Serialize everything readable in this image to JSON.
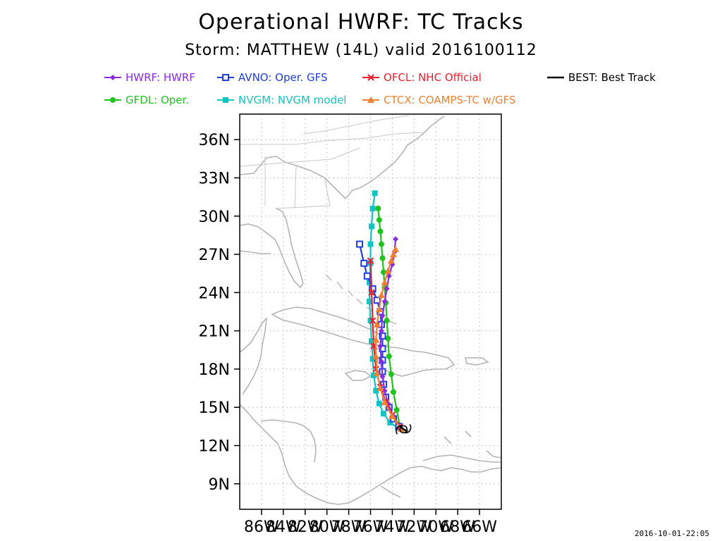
{
  "title": "Operational HWRF: TC Tracks",
  "subtitle": "Storm: MATTHEW (14L) valid 2016100112",
  "timestamp": "2016-10-01-22:05",
  "chart_data": {
    "type": "line",
    "xlim": [
      -88,
      -64
    ],
    "ylim": [
      7,
      38
    ],
    "x_ticks": [
      -86,
      -84,
      -82,
      -80,
      -78,
      -76,
      -74,
      -72,
      -70,
      -68,
      -66
    ],
    "x_tick_labels": [
      "86W",
      "84W",
      "82W",
      "80W",
      "78W",
      "76W",
      "74W",
      "72W",
      "70W",
      "68W",
      "66W"
    ],
    "y_ticks": [
      9,
      12,
      15,
      18,
      21,
      24,
      27,
      30,
      33,
      36
    ],
    "y_tick_labels": [
      "9N",
      "12N",
      "15N",
      "18N",
      "21N",
      "24N",
      "27N",
      "30N",
      "33N",
      "36N"
    ],
    "grid": true,
    "legend_position": "top",
    "series": [
      {
        "name": "HWRF: HWRF",
        "color": "#8a2be2",
        "marker": "diamond",
        "x": [
          -73.3,
          -73.9,
          -74.4,
          -74.7,
          -74.9,
          -75.0,
          -75.1,
          -75.0,
          -74.9,
          -74.7,
          -74.5,
          -74.3,
          -74.0,
          -73.8,
          -73.7
        ],
        "y": [
          13.4,
          14.3,
          15.3,
          16.3,
          17.4,
          18.6,
          19.8,
          21.0,
          22.2,
          23.3,
          24.3,
          25.3,
          26.2,
          27.2,
          28.2
        ]
      },
      {
        "name": "AVNO: Oper. GFS",
        "color": "#1f3fe0",
        "marker": "open-square",
        "x": [
          -73.4,
          -73.9,
          -74.3,
          -74.6,
          -74.8,
          -74.9,
          -74.9,
          -74.9,
          -74.9,
          -75.0,
          -75.1,
          -75.4,
          -75.8,
          -76.3,
          -76.6,
          -77.0
        ],
        "y": [
          13.5,
          14.1,
          15.0,
          15.8,
          16.8,
          17.8,
          18.7,
          19.6,
          20.6,
          21.5,
          22.5,
          23.4,
          24.3,
          25.3,
          26.3,
          27.8
        ]
      },
      {
        "name": "OFCL: NHC Official",
        "color": "#e8202c",
        "marker": "x",
        "x": [
          -73.3,
          -74.0,
          -74.6,
          -75.1,
          -75.5,
          -75.7,
          -75.8,
          -75.9,
          -76.0
        ],
        "y": [
          13.5,
          14.4,
          15.4,
          16.6,
          18.0,
          19.8,
          21.8,
          24.0,
          26.5
        ]
      },
      {
        "name": "BEST: Best Track",
        "color": "#000000",
        "marker": "none",
        "x": [
          -72.6,
          -73.0,
          -73.3
        ],
        "y": [
          13.1,
          13.3,
          13.5
        ]
      },
      {
        "name": "GFDL: Oper.",
        "color": "#1ec41e",
        "marker": "circle",
        "x": [
          -73.3,
          -73.6,
          -73.9,
          -74.1,
          -74.3,
          -74.4,
          -74.5,
          -74.6,
          -74.7,
          -74.8,
          -74.9,
          -75.0,
          -75.1,
          -75.2,
          -75.3
        ],
        "y": [
          13.5,
          14.8,
          16.2,
          17.6,
          19.0,
          20.4,
          21.8,
          23.2,
          24.4,
          25.6,
          26.7,
          27.8,
          28.8,
          29.7,
          30.6
        ]
      },
      {
        "name": "NVGM: NVGM model",
        "color": "#12c4c4",
        "marker": "filled-square",
        "x": [
          -73.5,
          -74.2,
          -74.8,
          -75.2,
          -75.5,
          -75.7,
          -75.8,
          -75.9,
          -76.0,
          -76.1,
          -76.1,
          -76.0,
          -76.0,
          -75.9,
          -75.8,
          -75.6
        ],
        "y": [
          13.4,
          13.8,
          14.5,
          15.3,
          16.3,
          17.5,
          18.8,
          20.2,
          21.8,
          23.3,
          24.8,
          26.3,
          27.8,
          29.2,
          30.6,
          31.8
        ]
      },
      {
        "name": "CTCX: COAMPS-TC w/GFS",
        "color": "#f08030",
        "marker": "triangle",
        "x": [
          -73.2,
          -74.0,
          -74.7,
          -75.1,
          -75.4,
          -75.5,
          -75.5,
          -75.4,
          -75.2,
          -75.0,
          -74.7,
          -74.4,
          -74.1,
          -73.9,
          -73.7
        ],
        "y": [
          13.3,
          14.3,
          15.4,
          16.5,
          17.7,
          19.0,
          20.3,
          21.5,
          22.7,
          23.8,
          24.8,
          25.7,
          26.5,
          27.0,
          27.4
        ]
      }
    ]
  }
}
